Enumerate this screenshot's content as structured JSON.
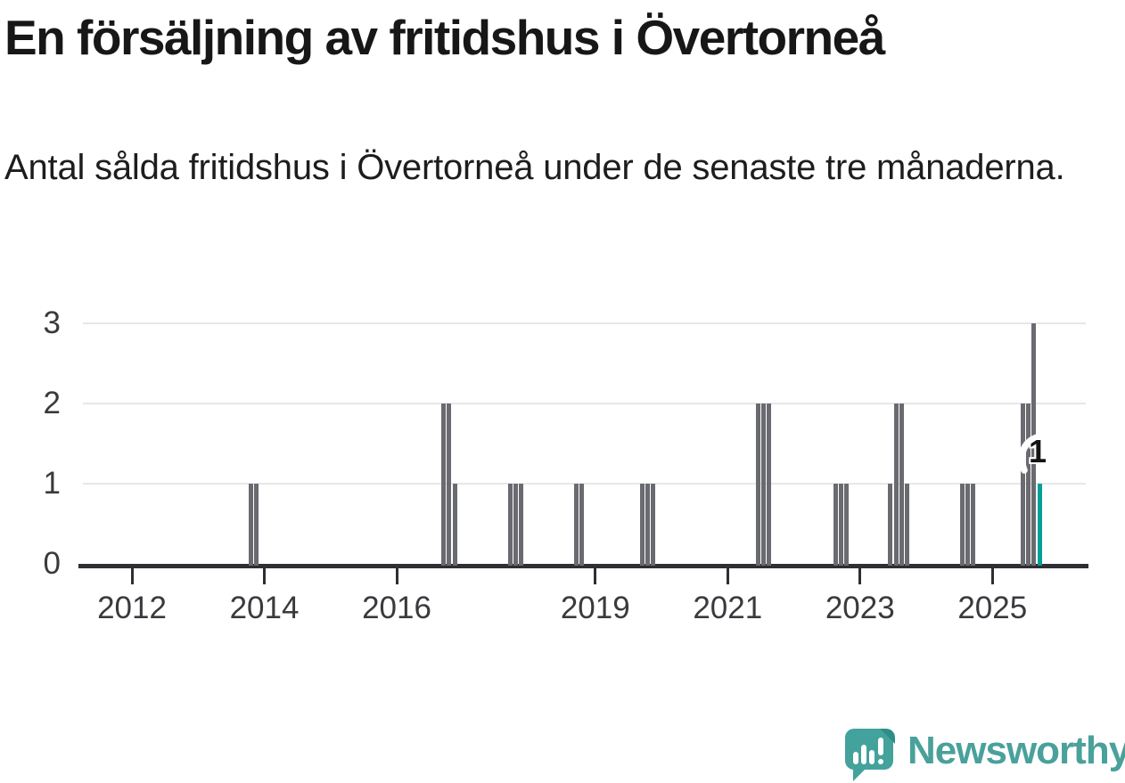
{
  "title": "En försäljning av fritidshus i Övertorneå",
  "subtitle": "Antal sålda fritidshus i Övertorneå under de senaste tre månaderna.",
  "branding": {
    "logo_text": "Newsworthy"
  },
  "colors": {
    "bar": "#6a6a71",
    "highlight_bar": "#01a09a",
    "axis": "#2e2e33",
    "gridline": "#e7e7e7",
    "tick_label": "#3a3a3e",
    "logo_teal": "#43a29c",
    "logo_fold": "#2e8d87",
    "logo_text": "#4aa19b"
  },
  "chart_data": {
    "type": "bar",
    "title": "En försäljning av fritidshus i Övertorneå",
    "xlabel": "",
    "ylabel": "",
    "ylim": [
      0,
      3
    ],
    "grid": "horizontal",
    "legend": "none",
    "y_ticks": [
      0,
      1,
      2,
      3
    ],
    "x_tick_years": [
      2012,
      2014,
      2016,
      2019,
      2021,
      2023,
      2025
    ],
    "bars": [
      {
        "month": "2013-10",
        "value": 1
      },
      {
        "month": "2013-11",
        "value": 1
      },
      {
        "month": "2016-09",
        "value": 2
      },
      {
        "month": "2016-10",
        "value": 2
      },
      {
        "month": "2016-11",
        "value": 1
      },
      {
        "month": "2017-09",
        "value": 1
      },
      {
        "month": "2017-10",
        "value": 1
      },
      {
        "month": "2017-11",
        "value": 1
      },
      {
        "month": "2018-09",
        "value": 1
      },
      {
        "month": "2018-10",
        "value": 1
      },
      {
        "month": "2019-09",
        "value": 1
      },
      {
        "month": "2019-10",
        "value": 1
      },
      {
        "month": "2019-11",
        "value": 1
      },
      {
        "month": "2021-06",
        "value": 2
      },
      {
        "month": "2021-07",
        "value": 2
      },
      {
        "month": "2021-08",
        "value": 2
      },
      {
        "month": "2022-08",
        "value": 1
      },
      {
        "month": "2022-09",
        "value": 1
      },
      {
        "month": "2022-10",
        "value": 1
      },
      {
        "month": "2023-06",
        "value": 1
      },
      {
        "month": "2023-07",
        "value": 2
      },
      {
        "month": "2023-08",
        "value": 2
      },
      {
        "month": "2023-09",
        "value": 1
      },
      {
        "month": "2024-07",
        "value": 1
      },
      {
        "month": "2024-08",
        "value": 1
      },
      {
        "month": "2024-09",
        "value": 1
      },
      {
        "month": "2025-06",
        "value": 2
      },
      {
        "month": "2025-07",
        "value": 2
      },
      {
        "month": "2025-08",
        "value": 3
      },
      {
        "month": "2025-09",
        "value": 1,
        "highlight": true
      }
    ],
    "highlight_annotation": {
      "month": "2025-09",
      "label": "1"
    }
  }
}
